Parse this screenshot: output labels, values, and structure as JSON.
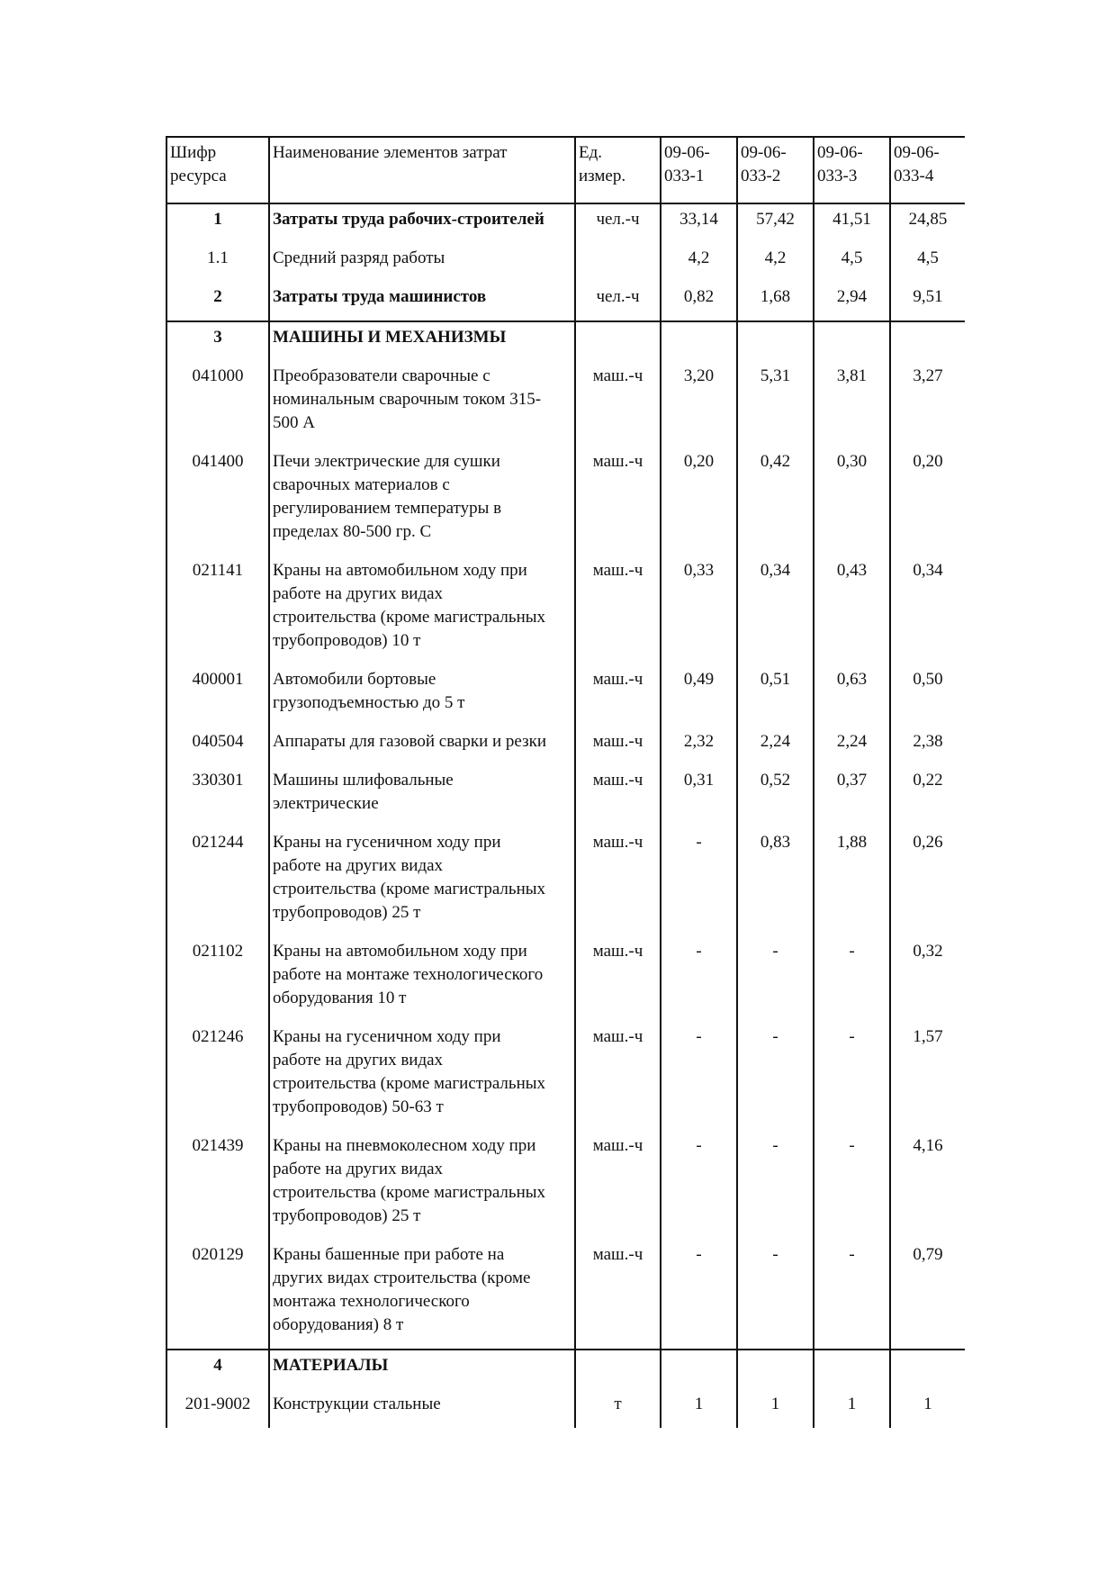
{
  "table": {
    "headers": [
      "Шифр\nресурса",
      "Наименование элементов затрат",
      "Ед.\nизмер.",
      "09-06-\n033-1",
      "09-06-\n033-2",
      "09-06-\n033-3",
      "09-06-\n033-4"
    ],
    "rows": [
      {
        "code": "1",
        "name": "Затраты труда рабочих-строителей",
        "unit": "чел.-ч",
        "values": [
          "33,14",
          "57,42",
          "41,51",
          "24,85"
        ],
        "bold": true
      },
      {
        "code": "1.1",
        "name": "Средний разряд работы",
        "unit": "",
        "values": [
          "4,2",
          "4,2",
          "4,5",
          "4,5"
        ]
      },
      {
        "code": "2",
        "name": "Затраты труда машинистов",
        "unit": "чел.-ч",
        "values": [
          "0,82",
          "1,68",
          "2,94",
          "9,51"
        ],
        "bold": true,
        "sep_bottom": true
      },
      {
        "code": "3",
        "name": "МАШИНЫ И МЕХАНИЗМЫ",
        "unit": "",
        "values": [
          "",
          "",
          "",
          ""
        ],
        "bold": true
      },
      {
        "code": "041000",
        "name": "Преобразователи сварочные с\nноминальным сварочным током 315-\n500 А",
        "unit": "маш.-ч",
        "values": [
          "3,20",
          "5,31",
          "3,81",
          "3,27"
        ]
      },
      {
        "code": "041400",
        "name": "Печи электрические для сушки\nсварочных материалов с\nрегулированием температуры в\nпределах 80-500 гр. С",
        "unit": "маш.-ч",
        "values": [
          "0,20",
          "0,42",
          "0,30",
          "0,20"
        ]
      },
      {
        "code": "021141",
        "name": "Краны на автомобильном ходу при\nработе на других видах\nстроительства (кроме магистральных\nтрубопроводов) 10 т",
        "unit": "маш.-ч",
        "values": [
          "0,33",
          "0,34",
          "0,43",
          "0,34"
        ]
      },
      {
        "code": "400001",
        "name": "Автомобили бортовые\nгрузоподъемностью до 5 т",
        "unit": "маш.-ч",
        "values": [
          "0,49",
          "0,51",
          "0,63",
          "0,50"
        ]
      },
      {
        "code": "040504",
        "name": "Аппараты для газовой сварки и резки",
        "unit": "маш.-ч",
        "values": [
          "2,32",
          "2,24",
          "2,24",
          "2,38"
        ]
      },
      {
        "code": "330301",
        "name": "Машины шлифовальные\nэлектрические",
        "unit": "маш.-ч",
        "values": [
          "0,31",
          "0,52",
          "0,37",
          "0,22"
        ]
      },
      {
        "code": "021244",
        "name": "Краны на гусеничном ходу при\nработе на других видах\nстроительства (кроме магистральных\nтрубопроводов) 25 т",
        "unit": "маш.-ч",
        "values": [
          "-",
          "0,83",
          "1,88",
          "0,26"
        ]
      },
      {
        "code": "021102",
        "name": "Краны на автомобильном ходу при\nработе на монтаже технологического\nоборудования 10 т",
        "unit": "маш.-ч",
        "values": [
          "-",
          "-",
          "-",
          "0,32"
        ]
      },
      {
        "code": "021246",
        "name": "Краны на гусеничном ходу при\nработе на других видах\nстроительства (кроме магистральных\nтрубопроводов) 50-63 т",
        "unit": "маш.-ч",
        "values": [
          "-",
          "-",
          "-",
          "1,57"
        ]
      },
      {
        "code": "021439",
        "name": "Краны на пневмоколесном ходу при\nработе на других видах\nстроительства (кроме магистральных\nтрубопроводов) 25 т",
        "unit": "маш.-ч",
        "values": [
          "-",
          "-",
          "-",
          "4,16"
        ]
      },
      {
        "code": "020129",
        "name": "Краны башенные при работе на\nдругих видах строительства (кроме\nмонтажа технологического\nоборудования) 8 т",
        "unit": "маш.-ч",
        "values": [
          "-",
          "-",
          "-",
          "0,79"
        ],
        "sep_bottom": true
      },
      {
        "code": "4",
        "name": "МАТЕРИАЛЫ",
        "unit": "",
        "values": [
          "",
          "",
          "",
          ""
        ],
        "bold": true
      },
      {
        "code": "201-9002",
        "name": "Конструкции стальные",
        "unit": "т",
        "values": [
          "1",
          "1",
          "1",
          "1"
        ]
      }
    ]
  }
}
